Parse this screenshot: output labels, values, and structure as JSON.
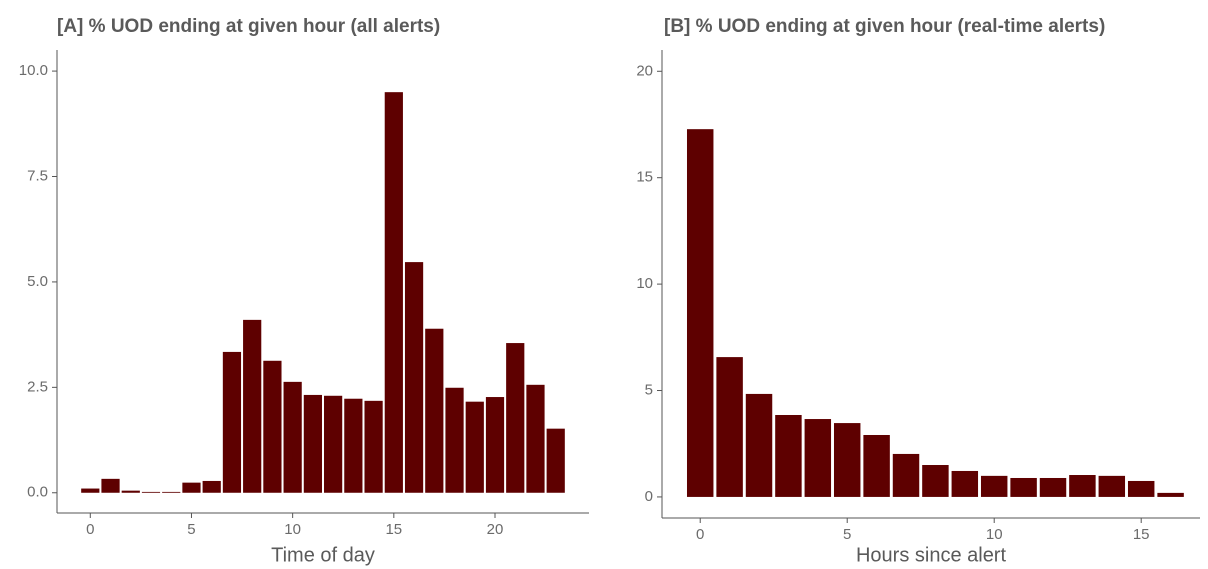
{
  "chart_data": [
    {
      "type": "bar",
      "title": "[A] % UOD ending at given hour (all alerts)",
      "x_label": "Time of day",
      "x": [
        0,
        1,
        2,
        3,
        4,
        5,
        6,
        7,
        8,
        9,
        10,
        11,
        12,
        13,
        14,
        15,
        16,
        17,
        18,
        19,
        20,
        21,
        22,
        23
      ],
      "values": [
        0.1,
        0.33,
        0.05,
        0.02,
        0.02,
        0.24,
        0.28,
        3.34,
        4.1,
        3.13,
        2.63,
        2.32,
        2.3,
        2.23,
        2.18,
        9.5,
        5.47,
        3.89,
        2.49,
        2.16,
        2.27,
        3.55,
        2.56,
        1.52
      ],
      "color": "#5e0000",
      "xlim": [
        -1.645,
        24.645
      ],
      "xticks": [
        0,
        5,
        10,
        15,
        20
      ],
      "ylim": [
        -0.48,
        10.5
      ],
      "yticks": [
        {
          "value": 0,
          "label": "0.0"
        },
        {
          "value": 2.5,
          "label": "2.5"
        },
        {
          "value": 5,
          "label": "5.0"
        },
        {
          "value": 7.5,
          "label": "7.5"
        },
        {
          "value": 10,
          "label": "10.0"
        }
      ],
      "grid": false
    },
    {
      "type": "bar",
      "title": "[B] % UOD ending at given hour (real-time alerts)",
      "x_label": "Hours since alert",
      "x": [
        0,
        1,
        2,
        3,
        4,
        5,
        6,
        7,
        8,
        9,
        10,
        11,
        12,
        13,
        14,
        15,
        16
      ],
      "values": [
        17.28,
        6.57,
        4.84,
        3.85,
        3.66,
        3.47,
        2.91,
        2.02,
        1.5,
        1.22,
        0.99,
        0.89,
        0.89,
        1.03,
        0.99,
        0.75,
        0.19
      ],
      "color": "#5e0000",
      "xlim": [
        -1.3,
        17
      ],
      "xticks": [
        0,
        5,
        10,
        15
      ],
      "ylim": [
        -0.99,
        21
      ],
      "yticks": [
        0,
        5,
        10,
        15,
        20
      ],
      "grid": false
    }
  ]
}
